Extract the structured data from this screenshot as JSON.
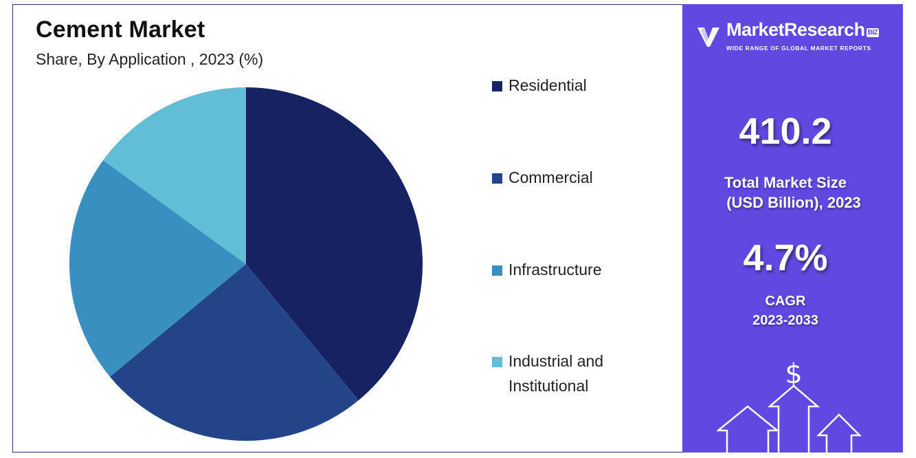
{
  "chart_data": {
    "type": "pie",
    "title": "Cement Market",
    "subtitle": "Share, By Application , 2023 (%)",
    "categories": [
      "Residential",
      "Commercial",
      "Infrastructure",
      "Industrial and Institutional"
    ],
    "values": [
      39,
      25,
      21,
      15
    ],
    "colors": [
      "#162261",
      "#24448a",
      "#3a8fc1",
      "#62bdd6"
    ],
    "legend_position": "right"
  },
  "side_panel": {
    "brand_name": "MarketResearch",
    "brand_badge": "BIZ",
    "brand_tagline": "WIDE RANGE OF GLOBAL MARKET REPORTS",
    "market_size_value": "410.2",
    "market_size_label_line1": "Total Market Size",
    "market_size_label_line2": "(USD Billion), 2023",
    "cagr_value": "4.7%",
    "cagr_label_line1": "CAGR",
    "cagr_label_line2": "2023-2033",
    "currency_symbol": "$",
    "background_color": "#6148e0",
    "art_icon": "rising-arrows-dollar-icon"
  }
}
